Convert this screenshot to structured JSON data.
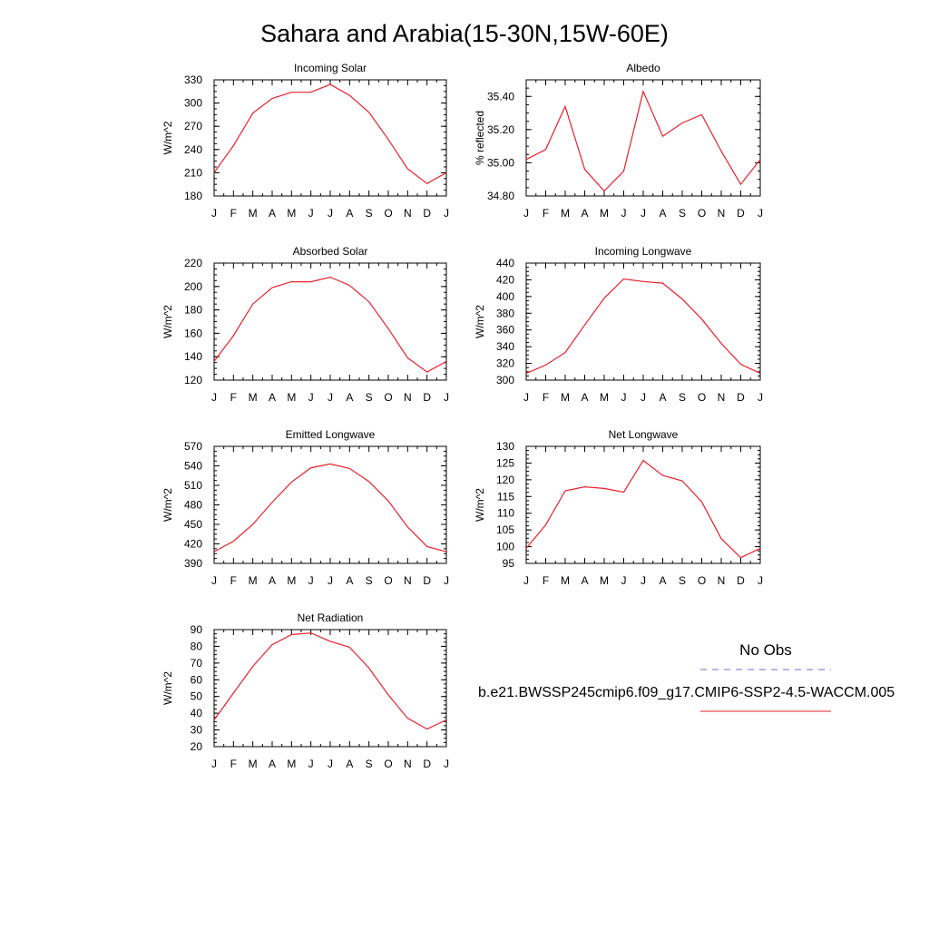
{
  "title": "Sahara and Arabia(15-30N,15W-60E)",
  "month_labels": [
    "J",
    "F",
    "M",
    "A",
    "M",
    "J",
    "J",
    "A",
    "S",
    "O",
    "N",
    "D",
    "J"
  ],
  "colors": {
    "model_line": "#e8202a",
    "obs_line": "#6b6bdb"
  },
  "legend": {
    "obs_label": "No Obs",
    "model_label": "b.e21.BWSSP245cmip6.f09_g17.CMIP6-SSP2-4.5-WACCM.005"
  },
  "chart_data": [
    {
      "type": "line",
      "title": "Incoming Solar",
      "ylabel": "W/m^2",
      "ylim": [
        180,
        330
      ],
      "yticks": [
        180,
        210,
        240,
        270,
        300,
        330
      ],
      "ytick_labels": [
        "180",
        "210",
        "240",
        "270",
        "300",
        "330"
      ],
      "x": [
        "J",
        "F",
        "M",
        "A",
        "M",
        "J",
        "J",
        "A",
        "S",
        "O",
        "N",
        "D",
        "J"
      ],
      "series": [
        {
          "values": [
            210,
            245,
            287,
            306,
            314,
            314,
            324,
            310,
            288,
            253,
            215,
            196,
            210
          ]
        }
      ]
    },
    {
      "type": "line",
      "title": "Albedo",
      "ylabel": "% reflected",
      "ylim": [
        34.8,
        35.5
      ],
      "yticks": [
        34.8,
        35.0,
        35.2,
        35.4
      ],
      "ytick_labels": [
        "34.80",
        "35.00",
        "35.20",
        "35.40"
      ],
      "x": [
        "J",
        "F",
        "M",
        "A",
        "M",
        "J",
        "J",
        "A",
        "S",
        "O",
        "N",
        "D",
        "J"
      ],
      "series": [
        {
          "values": [
            35.02,
            35.08,
            35.34,
            34.96,
            34.83,
            34.95,
            35.43,
            35.16,
            35.24,
            35.29,
            35.07,
            34.87,
            35.02
          ]
        }
      ]
    },
    {
      "type": "line",
      "title": "Absorbed Solar",
      "ylabel": "W/m^2",
      "ylim": [
        120,
        220
      ],
      "yticks": [
        120,
        140,
        160,
        180,
        200,
        220
      ],
      "ytick_labels": [
        "120",
        "140",
        "160",
        "180",
        "200",
        "220"
      ],
      "x": [
        "J",
        "F",
        "M",
        "A",
        "M",
        "J",
        "J",
        "A",
        "S",
        "O",
        "N",
        "D",
        "J"
      ],
      "series": [
        {
          "values": [
            136,
            158,
            185,
            199,
            204,
            204,
            208,
            201,
            187,
            164,
            139,
            127,
            136
          ]
        }
      ]
    },
    {
      "type": "line",
      "title": "Incoming Longwave",
      "ylabel": "W/m^2",
      "ylim": [
        300,
        440
      ],
      "yticks": [
        300,
        320,
        340,
        360,
        380,
        400,
        420,
        440
      ],
      "ytick_labels": [
        "300",
        "320",
        "340",
        "360",
        "380",
        "400",
        "420",
        "440"
      ],
      "x": [
        "J",
        "F",
        "M",
        "A",
        "M",
        "J",
        "J",
        "A",
        "S",
        "O",
        "N",
        "D",
        "J"
      ],
      "series": [
        {
          "values": [
            308,
            318,
            333,
            366,
            398,
            421,
            418,
            416,
            397,
            373,
            344,
            319,
            308
          ]
        }
      ]
    },
    {
      "type": "line",
      "title": "Emitted Longwave",
      "ylabel": "W/m^2",
      "ylim": [
        390,
        570
      ],
      "yticks": [
        390,
        420,
        450,
        480,
        510,
        540,
        570
      ],
      "ytick_labels": [
        "390",
        "420",
        "450",
        "480",
        "510",
        "540",
        "570"
      ],
      "x": [
        "J",
        "F",
        "M",
        "A",
        "M",
        "J",
        "J",
        "A",
        "S",
        "O",
        "N",
        "D",
        "J"
      ],
      "series": [
        {
          "values": [
            408,
            424,
            450,
            484,
            515,
            537,
            543,
            536,
            516,
            486,
            446,
            416,
            408
          ]
        }
      ]
    },
    {
      "type": "line",
      "title": "Net Longwave",
      "ylabel": "W/m^2",
      "ylim": [
        95,
        130
      ],
      "yticks": [
        95,
        100,
        105,
        110,
        115,
        120,
        125,
        130
      ],
      "ytick_labels": [
        "95",
        "100",
        "105",
        "110",
        "115",
        "120",
        "125",
        "130"
      ],
      "x": [
        "J",
        "F",
        "M",
        "A",
        "M",
        "J",
        "J",
        "A",
        "S",
        "O",
        "N",
        "D",
        "J"
      ],
      "series": [
        {
          "values": [
            99.5,
            106.5,
            116.7,
            117.9,
            117.4,
            116.3,
            125.8,
            121.3,
            119.7,
            113.4,
            102.4,
            96.7,
            99.5
          ]
        }
      ]
    },
    {
      "type": "line",
      "title": "Net Radiation",
      "ylabel": "W/m^2",
      "ylim": [
        20,
        90
      ],
      "yticks": [
        20,
        30,
        40,
        50,
        60,
        70,
        80,
        90
      ],
      "ytick_labels": [
        "20",
        "30",
        "40",
        "50",
        "60",
        "70",
        "80",
        "90"
      ],
      "x": [
        "J",
        "F",
        "M",
        "A",
        "M",
        "J",
        "J",
        "A",
        "S",
        "O",
        "N",
        "D",
        "J"
      ],
      "series": [
        {
          "values": [
            36,
            52,
            68,
            81,
            87,
            88,
            83,
            79.5,
            67,
            51,
            37,
            30.5,
            36
          ]
        }
      ]
    }
  ]
}
